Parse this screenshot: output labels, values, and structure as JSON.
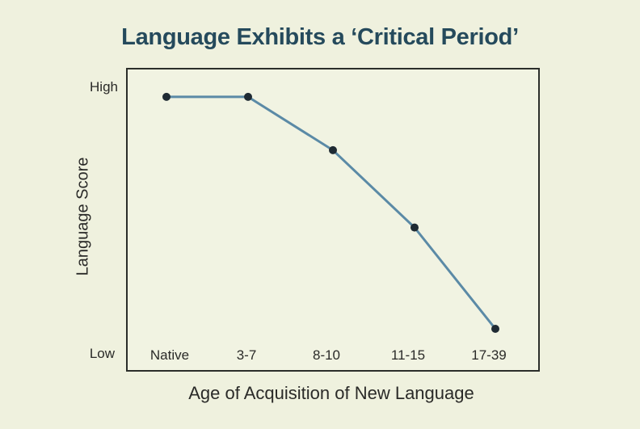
{
  "chart_data": {
    "type": "line",
    "title": "Language Exhibits a ‘Critical Period’",
    "xlabel": "Age of Acquisition of New Language",
    "ylabel": "Language Score",
    "categories": [
      "Native",
      "3-7",
      "8-10",
      "11-15",
      "17-39"
    ],
    "y_tick_labels": [
      "Low",
      "High"
    ],
    "ylim": [
      0,
      100
    ],
    "series": [
      {
        "name": "Language Score",
        "values": [
          97,
          97,
          77,
          48,
          10
        ]
      }
    ],
    "grid": false,
    "legend": null,
    "colors": {
      "line": "#5b8aa6",
      "marker": "#1f2a33",
      "title": "#254a5c",
      "background": "#eff1de"
    }
  },
  "labels": {
    "title": "Language Exhibits a ‘Critical Period’",
    "y_high": "High",
    "y_low": "Low",
    "ylabel": "Language Score",
    "xlabel": "Age of Acquisition of New Language",
    "xticks": [
      "Native",
      "3-7",
      "8-10",
      "11-15",
      "17-39"
    ]
  }
}
